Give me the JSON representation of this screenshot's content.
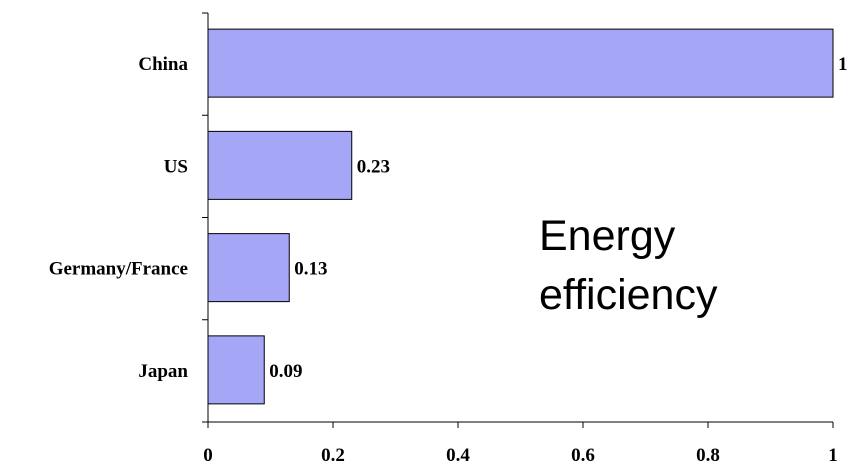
{
  "chart_data": {
    "type": "bar",
    "orientation": "horizontal",
    "categories": [
      "China",
      "US",
      "Germany/France",
      "Japan"
    ],
    "values": [
      1,
      0.23,
      0.13,
      0.09
    ],
    "value_labels": [
      "1",
      "0.23",
      "0.13",
      "0.09"
    ],
    "xlim": [
      0,
      1
    ],
    "xticks": [
      0,
      0.2,
      0.4,
      0.6,
      0.8,
      1
    ],
    "xtick_labels": [
      "0",
      "0.2",
      "0.4",
      "0.6",
      "0.8",
      "1"
    ],
    "annotation": [
      "Energy",
      "efficiency"
    ],
    "grid": false,
    "legend": "none",
    "bar_color": "#a6a6f7",
    "bar_edge_color": "#000000"
  }
}
